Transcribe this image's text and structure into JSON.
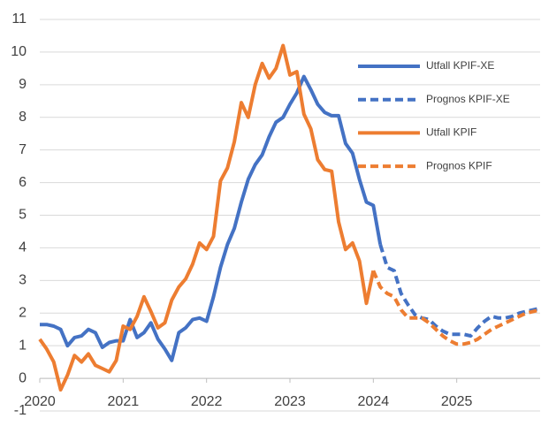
{
  "chart_data": {
    "type": "line",
    "x": [
      2020,
      2020.083,
      2020.167,
      2020.25,
      2020.333,
      2020.417,
      2020.5,
      2020.583,
      2020.667,
      2020.75,
      2020.833,
      2020.917,
      2021,
      2021.083,
      2021.167,
      2021.25,
      2021.333,
      2021.417,
      2021.5,
      2021.583,
      2021.667,
      2021.75,
      2021.833,
      2021.917,
      2022,
      2022.083,
      2022.167,
      2022.25,
      2022.333,
      2022.417,
      2022.5,
      2022.583,
      2022.667,
      2022.75,
      2022.833,
      2022.917,
      2023,
      2023.083,
      2023.167,
      2023.25,
      2023.333,
      2023.417,
      2023.5,
      2023.583,
      2023.667,
      2023.75,
      2023.833,
      2023.917,
      2024,
      2024.083,
      2024.167,
      2024.25,
      2024.333,
      2024.417,
      2024.5,
      2024.583,
      2024.667,
      2024.75,
      2024.833,
      2024.917,
      2025,
      2025.083,
      2025.167,
      2025.25,
      2025.333,
      2025.417,
      2025.5,
      2025.583,
      2025.667,
      2025.75,
      2025.833,
      2025.917,
      2026
    ],
    "series": [
      {
        "name": "Utfall KPIF-XE",
        "color": "#4472c4",
        "dashed": false,
        "values": [
          1.65,
          1.65,
          1.6,
          1.5,
          1.0,
          1.25,
          1.3,
          1.5,
          1.4,
          0.95,
          1.1,
          1.15,
          1.15,
          1.8,
          1.25,
          1.4,
          1.7,
          1.2,
          0.9,
          0.55,
          1.4,
          1.55,
          1.8,
          1.85,
          1.75,
          2.5,
          3.4,
          4.1,
          4.6,
          5.4,
          6.1,
          6.55,
          6.85,
          7.4,
          7.85,
          8.0,
          8.4,
          8.75,
          9.25,
          8.85,
          8.4,
          8.15,
          8.05,
          8.05,
          7.2,
          6.9,
          6.1,
          5.4,
          5.3,
          4.1,
          null,
          null,
          null,
          null,
          null,
          null,
          null,
          null,
          null,
          null,
          null,
          null,
          null,
          null,
          null,
          null,
          null,
          null,
          null,
          null,
          null,
          null,
          null
        ]
      },
      {
        "name": "Prognos KPIF-XE",
        "color": "#4472c4",
        "dashed": true,
        "values": [
          null,
          null,
          null,
          null,
          null,
          null,
          null,
          null,
          null,
          null,
          null,
          null,
          null,
          null,
          null,
          null,
          null,
          null,
          null,
          null,
          null,
          null,
          null,
          null,
          null,
          null,
          null,
          null,
          null,
          null,
          null,
          null,
          null,
          null,
          null,
          null,
          null,
          null,
          null,
          null,
          null,
          null,
          null,
          null,
          null,
          null,
          null,
          null,
          null,
          4.1,
          3.4,
          3.3,
          2.6,
          2.25,
          1.95,
          1.85,
          1.8,
          1.6,
          1.45,
          1.35,
          1.35,
          1.35,
          1.3,
          1.55,
          1.75,
          1.9,
          1.85,
          1.85,
          1.9,
          2.0,
          2.05,
          2.1,
          2.15
        ]
      },
      {
        "name": "Utfall KPIF",
        "color": "#ed7d31",
        "dashed": false,
        "values": [
          1.2,
          0.9,
          0.5,
          -0.35,
          0.1,
          0.7,
          0.5,
          0.75,
          0.4,
          0.3,
          0.2,
          0.55,
          1.6,
          1.5,
          1.9,
          2.5,
          2.05,
          1.55,
          1.7,
          2.4,
          2.8,
          3.05,
          3.5,
          4.15,
          3.95,
          4.35,
          6.05,
          6.45,
          7.25,
          8.45,
          8.0,
          9.0,
          9.65,
          9.2,
          9.5,
          10.2,
          9.3,
          9.4,
          8.1,
          7.65,
          6.7,
          6.4,
          6.35,
          4.8,
          3.95,
          4.15,
          3.6,
          2.3,
          3.3,
          null,
          null,
          null,
          null,
          null,
          null,
          null,
          null,
          null,
          null,
          null,
          null,
          null,
          null,
          null,
          null,
          null,
          null,
          null,
          null,
          null,
          null,
          null,
          null
        ]
      },
      {
        "name": "Prognos KPIF",
        "color": "#ed7d31",
        "dashed": true,
        "values": [
          null,
          null,
          null,
          null,
          null,
          null,
          null,
          null,
          null,
          null,
          null,
          null,
          null,
          null,
          null,
          null,
          null,
          null,
          null,
          null,
          null,
          null,
          null,
          null,
          null,
          null,
          null,
          null,
          null,
          null,
          null,
          null,
          null,
          null,
          null,
          null,
          null,
          null,
          null,
          null,
          null,
          null,
          null,
          null,
          null,
          null,
          null,
          null,
          3.3,
          2.8,
          2.6,
          2.5,
          2.1,
          1.85,
          1.85,
          1.85,
          1.7,
          1.5,
          1.3,
          1.15,
          1.05,
          1.05,
          1.1,
          1.2,
          1.35,
          1.5,
          1.6,
          1.7,
          1.8,
          1.9,
          2.0,
          2.05,
          2.1
        ]
      }
    ],
    "xlim": [
      2020,
      2026
    ],
    "xticks": [
      2020,
      2021,
      2022,
      2023,
      2024,
      2025
    ],
    "ylim": [
      -1,
      11
    ],
    "yticks": [
      -1,
      0,
      1,
      2,
      3,
      4,
      5,
      6,
      7,
      8,
      9,
      10,
      11
    ],
    "grid": true,
    "legend": "upper right"
  }
}
